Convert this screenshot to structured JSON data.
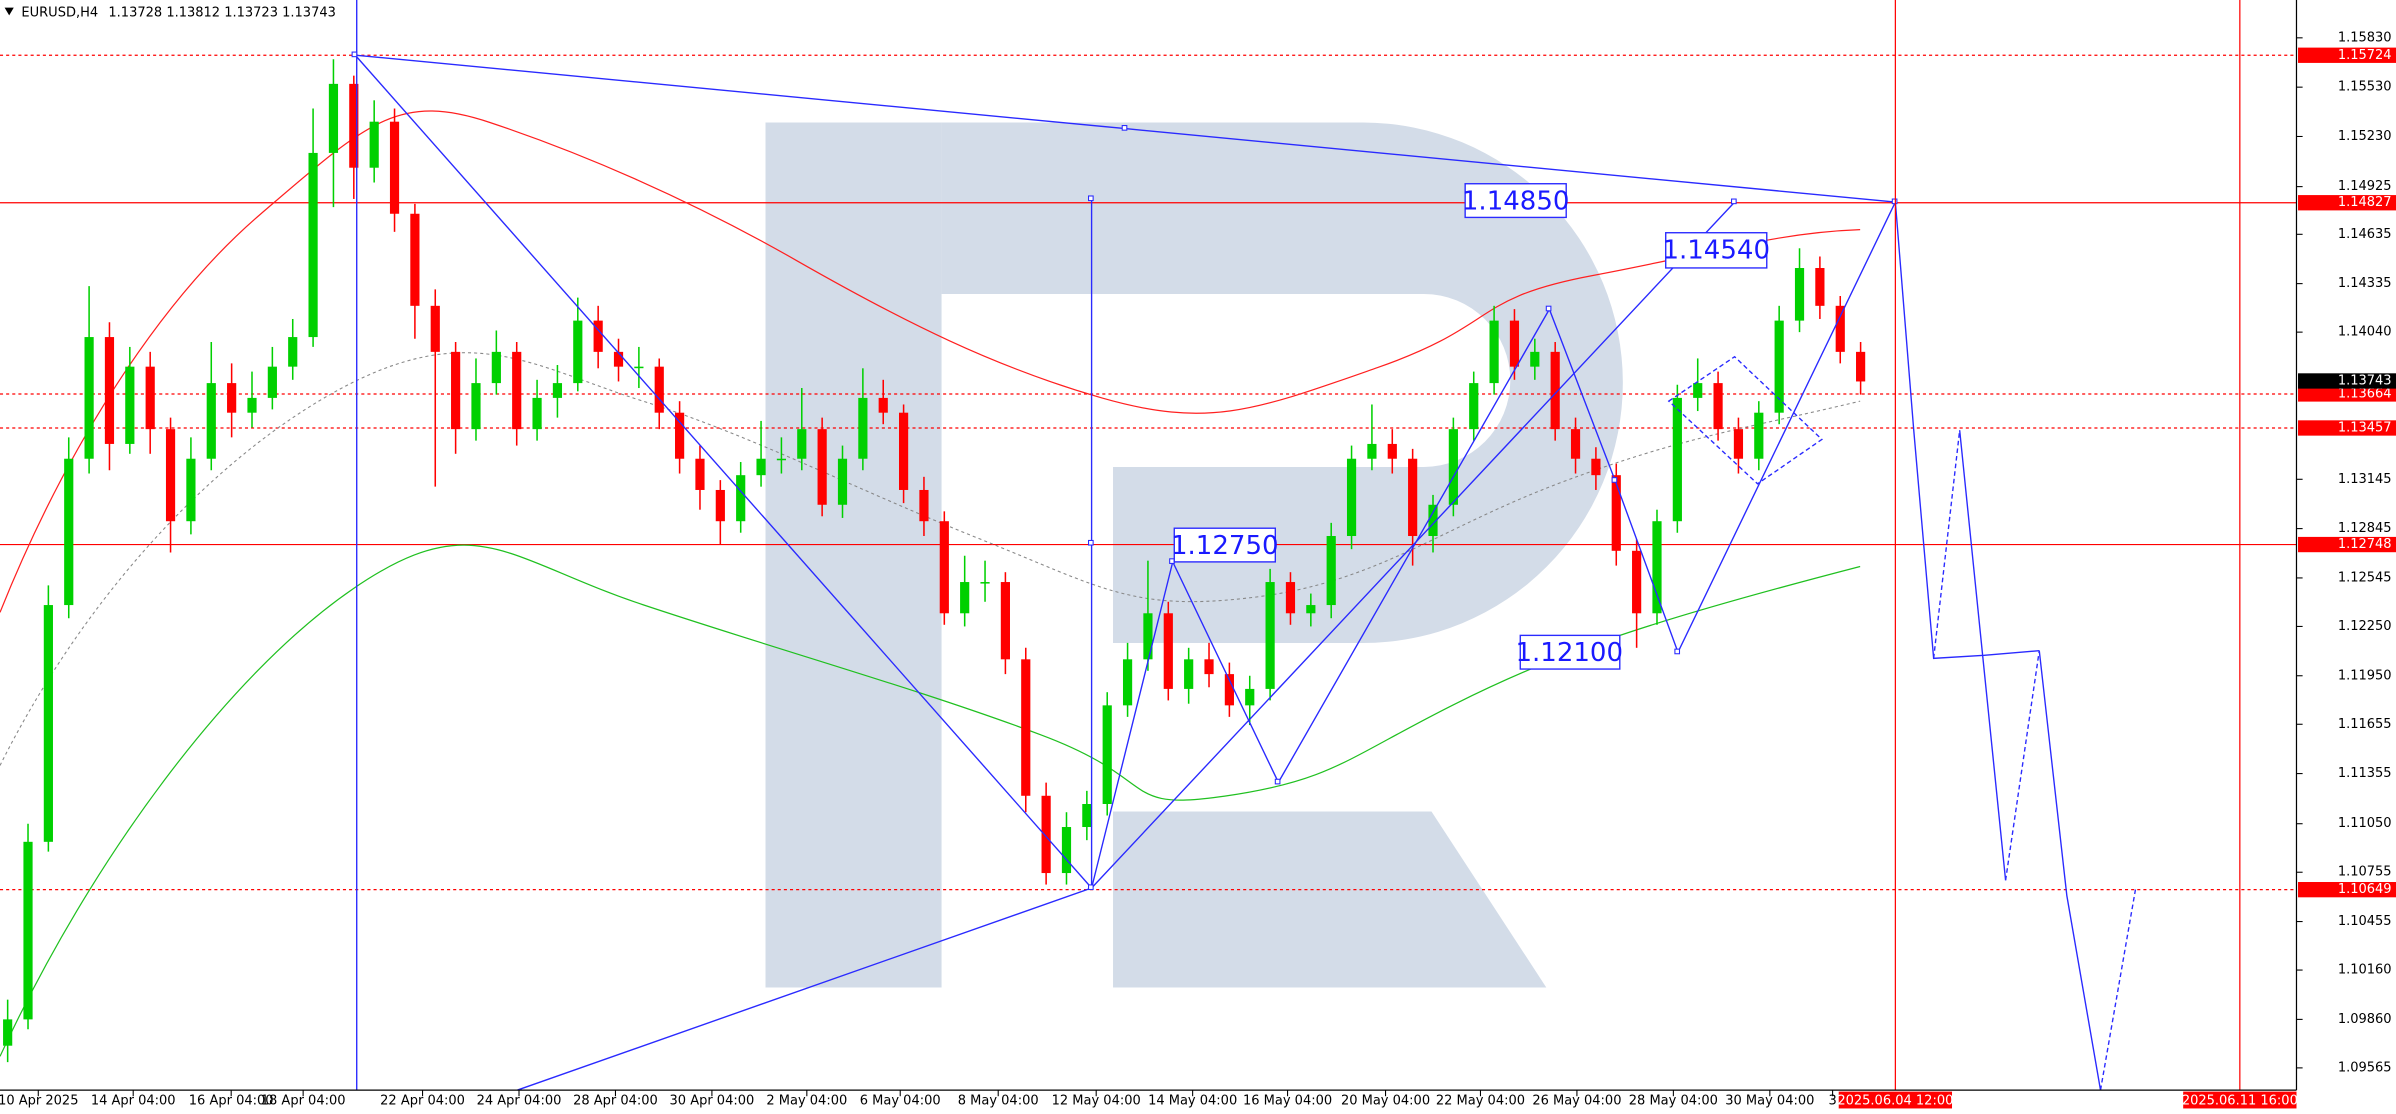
{
  "chart_data": {
    "type": "candlestick",
    "header": {
      "symbol": "EURUSD,H4",
      "open": 1.13728,
      "high": 1.13812,
      "low": 1.13723,
      "close": 1.13743
    },
    "ylim": [
      1.0943,
      1.1606
    ],
    "yticks": [
      {
        "value": 1.1583,
        "label": "1.15830"
      },
      {
        "value": 1.1553,
        "label": "1.15530"
      },
      {
        "value": 1.1523,
        "label": "1.15230"
      },
      1.14925,
      1.14635,
      1.14335,
      {
        "value": 1.1404,
        "label": "1.14040"
      },
      1.13145,
      1.12845,
      1.12545,
      {
        "value": 1.1225,
        "label": "1.12250"
      },
      {
        "value": 1.1195,
        "label": "1.11950"
      },
      1.11655,
      1.11355,
      {
        "value": 1.1105,
        "label": "1.11050"
      },
      1.10755,
      1.10455,
      {
        "value": 1.1016,
        "label": "1.10160"
      },
      {
        "value": 1.0986,
        "label": "1.09860"
      },
      1.09565
    ],
    "xticks": [
      "10 Apr 2025",
      "14 Apr 04:00",
      "16 Apr 04:00",
      "18 Apr 04:00",
      "22 Apr 04:00",
      "24 Apr 04:00",
      "28 Apr 04:00",
      "30 Apr 04:00",
      "2 May 04:00",
      "6 May 04:00",
      "8 May 04:00",
      "12 May 04:00",
      "14 May 04:00",
      "16 May 04:00",
      "20 May 04:00",
      "22 May 04:00",
      "26 May 04:00",
      "28 May 04:00",
      "30 May 04:00",
      "3"
    ],
    "time_markers": [
      "2025.06.04 12:00",
      "2025.06.11 16:00"
    ],
    "levels": [
      {
        "value": 1.15724,
        "style": "dotted"
      },
      {
        "value": 1.14827,
        "style": "solid"
      },
      {
        "value": 1.13664,
        "style": "dotted"
      },
      {
        "value": 1.13457,
        "style": "dotted"
      },
      {
        "value": 1.12748,
        "style": "solid"
      },
      {
        "value": 1.10649,
        "style": "dotted"
      }
    ],
    "current_price": 1.13743,
    "annotations": [
      "1.14850",
      "1.12750",
      "1.12100",
      "1.14540"
    ],
    "up_color": "#00d000",
    "down_color": "#ff0000",
    "level_color": "#ff0000",
    "candles": [
      [
        1.097,
        1.0998,
        1.096,
        1.0986
      ],
      [
        1.0986,
        1.1105,
        1.098,
        1.1094
      ],
      [
        1.1094,
        1.125,
        1.1088,
        1.1238
      ],
      [
        1.1238,
        1.134,
        1.123,
        1.1327
      ],
      [
        1.1327,
        1.1432,
        1.1318,
        1.1401
      ],
      [
        1.1401,
        1.141,
        1.132,
        1.1336
      ],
      [
        1.1336,
        1.1395,
        1.133,
        1.1383
      ],
      [
        1.1383,
        1.1392,
        1.133,
        1.1345
      ],
      [
        1.1345,
        1.1352,
        1.127,
        1.1289
      ],
      [
        1.1289,
        1.134,
        1.1281,
        1.1327
      ],
      [
        1.1327,
        1.1398,
        1.132,
        1.1373
      ],
      [
        1.1373,
        1.1385,
        1.134,
        1.1355
      ],
      [
        1.1355,
        1.138,
        1.1346,
        1.1364
      ],
      [
        1.1364,
        1.1395,
        1.1357,
        1.1383
      ],
      [
        1.1383,
        1.1412,
        1.1375,
        1.1401
      ],
      [
        1.1401,
        1.154,
        1.1395,
        1.1513
      ],
      [
        1.1513,
        1.157,
        1.148,
        1.1555
      ],
      [
        1.1555,
        1.156,
        1.1485,
        1.1504
      ],
      [
        1.1504,
        1.1545,
        1.1495,
        1.1532
      ],
      [
        1.1532,
        1.154,
        1.1465,
        1.1476
      ],
      [
        1.1476,
        1.1482,
        1.14,
        1.142
      ],
      [
        1.142,
        1.143,
        1.131,
        1.1392
      ],
      [
        1.1392,
        1.1398,
        1.133,
        1.1345
      ],
      [
        1.1345,
        1.1388,
        1.1338,
        1.1373
      ],
      [
        1.1373,
        1.1405,
        1.1366,
        1.1392
      ],
      [
        1.1392,
        1.1398,
        1.1335,
        1.1345
      ],
      [
        1.1345,
        1.1375,
        1.1338,
        1.1364
      ],
      [
        1.1364,
        1.1384,
        1.1352,
        1.1373
      ],
      [
        1.1373,
        1.1425,
        1.1368,
        1.1411
      ],
      [
        1.1411,
        1.142,
        1.1382,
        1.1392
      ],
      [
        1.1392,
        1.14,
        1.1374,
        1.1383
      ],
      [
        1.1383,
        1.1395,
        1.137,
        1.1383
      ],
      [
        1.1383,
        1.1388,
        1.1345,
        1.1355
      ],
      [
        1.1355,
        1.1362,
        1.1318,
        1.1327
      ],
      [
        1.1327,
        1.1335,
        1.1296,
        1.1308
      ],
      [
        1.1308,
        1.1314,
        1.1275,
        1.1289
      ],
      [
        1.1289,
        1.1325,
        1.1282,
        1.1317
      ],
      [
        1.1317,
        1.135,
        1.131,
        1.1327
      ],
      [
        1.1327,
        1.134,
        1.1318,
        1.1327
      ],
      [
        1.1327,
        1.137,
        1.132,
        1.1345
      ],
      [
        1.1345,
        1.1352,
        1.1292,
        1.1299
      ],
      [
        1.1299,
        1.1335,
        1.1291,
        1.1327
      ],
      [
        1.1327,
        1.1382,
        1.132,
        1.1364
      ],
      [
        1.1364,
        1.1375,
        1.1348,
        1.1355
      ],
      [
        1.1355,
        1.136,
        1.13,
        1.1308
      ],
      [
        1.1308,
        1.1316,
        1.128,
        1.1289
      ],
      [
        1.1289,
        1.1295,
        1.1226,
        1.1233
      ],
      [
        1.1233,
        1.1268,
        1.1225,
        1.1252
      ],
      [
        1.1252,
        1.1265,
        1.124,
        1.1252
      ],
      [
        1.1252,
        1.1258,
        1.1196,
        1.1205
      ],
      [
        1.1205,
        1.1212,
        1.1112,
        1.1122
      ],
      [
        1.1122,
        1.113,
        1.1068,
        1.1075
      ],
      [
        1.1075,
        1.1112,
        1.1068,
        1.1103
      ],
      [
        1.1103,
        1.1125,
        1.1095,
        1.1117
      ],
      [
        1.1117,
        1.1185,
        1.111,
        1.1177
      ],
      [
        1.1177,
        1.1215,
        1.117,
        1.1205
      ],
      [
        1.1205,
        1.1265,
        1.1198,
        1.1233
      ],
      [
        1.1233,
        1.124,
        1.118,
        1.1187
      ],
      [
        1.1187,
        1.1212,
        1.1178,
        1.1205
      ],
      [
        1.1205,
        1.1215,
        1.1188,
        1.1196
      ],
      [
        1.1196,
        1.1203,
        1.117,
        1.1177
      ],
      [
        1.1177,
        1.1195,
        1.1165,
        1.1187
      ],
      [
        1.1187,
        1.126,
        1.118,
        1.1252
      ],
      [
        1.1252,
        1.1258,
        1.1226,
        1.1233
      ],
      [
        1.1233,
        1.1245,
        1.1225,
        1.1238
      ],
      [
        1.1238,
        1.1288,
        1.123,
        1.128
      ],
      [
        1.128,
        1.1335,
        1.1272,
        1.1327
      ],
      [
        1.1327,
        1.136,
        1.132,
        1.1336
      ],
      [
        1.1336,
        1.1345,
        1.1318,
        1.1327
      ],
      [
        1.1327,
        1.1333,
        1.1262,
        1.128
      ],
      [
        1.128,
        1.1305,
        1.127,
        1.1299
      ],
      [
        1.1299,
        1.1352,
        1.1292,
        1.1345
      ],
      [
        1.1345,
        1.138,
        1.1338,
        1.1373
      ],
      [
        1.1373,
        1.142,
        1.1366,
        1.1411
      ],
      [
        1.1411,
        1.1418,
        1.1375,
        1.1383
      ],
      [
        1.1383,
        1.14,
        1.1375,
        1.1392
      ],
      [
        1.1392,
        1.1398,
        1.1338,
        1.1345
      ],
      [
        1.1345,
        1.1352,
        1.1318,
        1.1327
      ],
      [
        1.1327,
        1.1334,
        1.1308,
        1.1317
      ],
      [
        1.1317,
        1.1324,
        1.1262,
        1.1271
      ],
      [
        1.1271,
        1.1278,
        1.1212,
        1.1233
      ],
      [
        1.1233,
        1.1296,
        1.1226,
        1.1289
      ],
      [
        1.1289,
        1.1372,
        1.1282,
        1.1364
      ],
      [
        1.1364,
        1.1388,
        1.1356,
        1.1373
      ],
      [
        1.1373,
        1.138,
        1.1338,
        1.1345
      ],
      [
        1.1345,
        1.1352,
        1.1318,
        1.1327
      ],
      [
        1.1327,
        1.1362,
        1.132,
        1.1355
      ],
      [
        1.1355,
        1.142,
        1.1348,
        1.1411
      ],
      [
        1.1411,
        1.1455,
        1.1404,
        1.1443
      ],
      [
        1.1443,
        1.145,
        1.1412,
        1.142
      ],
      [
        1.142,
        1.1426,
        1.1385,
        1.1392
      ],
      [
        1.1392,
        1.1398,
        1.1366,
        1.1374
      ]
    ]
  }
}
